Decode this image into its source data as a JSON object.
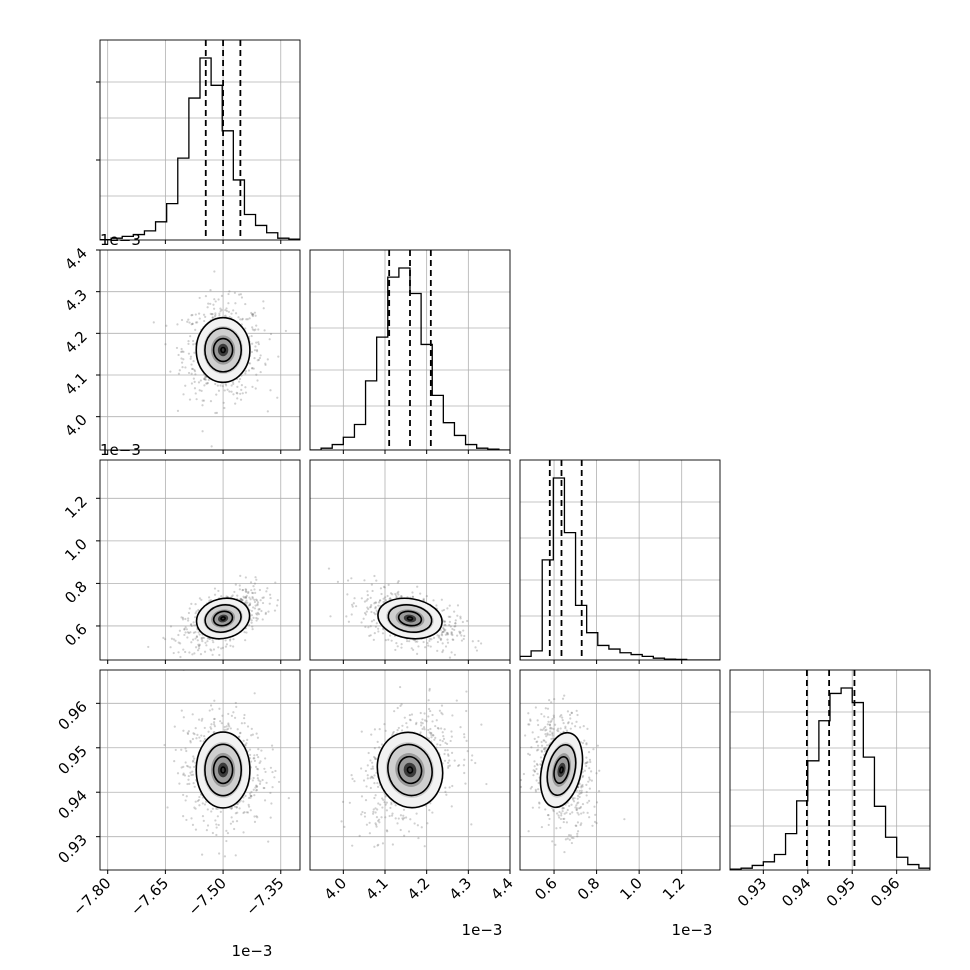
{
  "chart_data": {
    "type": "corner",
    "parameters": [
      {
        "range": [
          -7.82,
          -7.3
        ],
        "ticks": [
          -7.8,
          -7.65,
          -7.5,
          -7.35
        ],
        "tick_labels": [
          "−7.80",
          "−7.65",
          "−7.50",
          "−7.35"
        ],
        "offset_label": "1e−3",
        "quantiles": [
          -7.545,
          -7.5,
          -7.455
        ],
        "mean": -7.5,
        "sd": 0.045,
        "hist_values": [
          0.002,
          0.01,
          0.02,
          0.03,
          0.05,
          0.1,
          0.2,
          0.45,
          0.78,
          1.0,
          0.85,
          0.6,
          0.33,
          0.14,
          0.08,
          0.04,
          0.01,
          0.005
        ]
      },
      {
        "range": [
          3.92,
          4.4
        ],
        "ticks": [
          4.0,
          4.1,
          4.2,
          4.3,
          4.4
        ],
        "tick_labels": [
          "4.0",
          "4.1",
          "4.2",
          "4.3",
          "4.4"
        ],
        "offset_label": "1e−3",
        "quantiles": [
          4.11,
          4.16,
          4.21
        ],
        "mean": 4.16,
        "sd": 0.05,
        "hist_values": [
          0.0,
          0.01,
          0.03,
          0.07,
          0.14,
          0.38,
          0.62,
          0.95,
          1.0,
          0.86,
          0.58,
          0.3,
          0.15,
          0.08,
          0.03,
          0.01,
          0.005,
          0.0
        ]
      },
      {
        "range": [
          0.44,
          1.38
        ],
        "ticks": [
          0.6,
          0.8,
          1.0,
          1.2
        ],
        "tick_labels": [
          "0.6",
          "0.8",
          "1.0",
          "1.2"
        ],
        "offset_label": "1e−3",
        "quantiles": [
          0.58,
          0.635,
          0.73
        ],
        "mean": 0.635,
        "sd": 0.06,
        "hist_values": [
          0.02,
          0.05,
          0.55,
          1.0,
          0.7,
          0.3,
          0.15,
          0.08,
          0.06,
          0.04,
          0.03,
          0.02,
          0.01,
          0.005,
          0.003,
          0.0,
          0.0,
          0.0
        ]
      },
      {
        "range": [
          0.9225,
          0.9675
        ],
        "ticks": [
          0.93,
          0.94,
          0.95,
          0.96
        ],
        "tick_labels": [
          "0.93",
          "0.94",
          "0.95",
          "0.96"
        ],
        "offset_label": "",
        "quantiles": [
          0.9398,
          0.9448,
          0.9505
        ],
        "mean": 0.945,
        "sd": 0.0055,
        "hist_values": [
          0.005,
          0.01,
          0.025,
          0.045,
          0.085,
          0.2,
          0.38,
          0.6,
          0.82,
          0.97,
          1.0,
          0.92,
          0.62,
          0.35,
          0.18,
          0.07,
          0.03,
          0.01
        ]
      }
    ],
    "correlations": {
      "1,0": 0.0,
      "2,0": 0.55,
      "2,1": -0.45,
      "3,0": 0.0,
      "3,1": 0.35,
      "3,2": -0.2
    },
    "grid": true,
    "quantile_style": "dashed",
    "contours": 3,
    "scatter_color": "#777777"
  }
}
